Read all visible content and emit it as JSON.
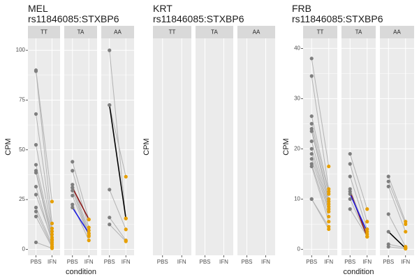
{
  "colors": {
    "panel_bg": "#ebebeb",
    "strip_bg": "#d9d9d9",
    "grid": "#ffffff",
    "pbs_point": "#7f7f7f",
    "ifn_point": "#e69f00",
    "pair_line": "#b3b3b3",
    "text": "#1a1a1a",
    "tick_text": "#4d4d4d"
  },
  "chart_data": [
    {
      "type": "scatter",
      "title_line1": "MEL",
      "title_line2": "rs11846085:STXBP6",
      "xlabel": "condition",
      "ylabel": "CPM",
      "ylim": [
        -3,
        106
      ],
      "yticks": [
        0,
        25,
        50,
        75,
        100
      ],
      "facets": [
        {
          "label": "TT",
          "categories": [
            "PBS",
            "IFN"
          ],
          "pairs": [
            {
              "pbs": 90,
              "ifn": 24
            },
            {
              "pbs": 89.5,
              "ifn": 13
            },
            {
              "pbs": 68,
              "ifn": 10.5
            },
            {
              "pbs": 52.5,
              "ifn": 9
            },
            {
              "pbs": 42.5,
              "ifn": 7.5
            },
            {
              "pbs": 39.5,
              "ifn": 6
            },
            {
              "pbs": 38.5,
              "ifn": 4.5
            },
            {
              "pbs": 31.5,
              "ifn": 3.5
            },
            {
              "pbs": 27.5,
              "ifn": 5
            },
            {
              "pbs": 21,
              "ifn": 2.5
            },
            {
              "pbs": 19,
              "ifn": 1.5
            },
            {
              "pbs": 16.5,
              "ifn": 1
            },
            {
              "pbs": 3.5,
              "ifn": 0.5
            }
          ],
          "highlight": []
        },
        {
          "label": "TA",
          "categories": [
            "PBS",
            "IFN"
          ],
          "pairs": [
            {
              "pbs": 44,
              "ifn": 15
            },
            {
              "pbs": 39.5,
              "ifn": 11
            },
            {
              "pbs": 32.5,
              "ifn": 9.5
            },
            {
              "pbs": 31,
              "ifn": 8
            },
            {
              "pbs": 29.5,
              "ifn": 7
            },
            {
              "pbs": 27,
              "ifn": 6.5
            },
            {
              "pbs": 22.5,
              "ifn": 4.5
            }
          ],
          "highlight": [
            {
              "pbs": 31,
              "ifn": 15,
              "color": "#8b1a1a"
            },
            {
              "pbs": 21,
              "ifn": 8,
              "color": "#1f1fe0"
            }
          ]
        },
        {
          "label": "AA",
          "categories": [
            "PBS",
            "IFN"
          ],
          "pairs": [
            {
              "pbs": 100,
              "ifn": 15.5
            },
            {
              "pbs": 72.5,
              "ifn": 36.5
            },
            {
              "pbs": 30,
              "ifn": 10
            },
            {
              "pbs": 16,
              "ifn": 4.5
            },
            {
              "pbs": 12.5,
              "ifn": 4
            }
          ],
          "highlight": [
            {
              "pbs": 72.5,
              "ifn": 15.5,
              "color": "#000000"
            }
          ]
        }
      ]
    },
    {
      "type": "scatter",
      "title_line1": "KRT",
      "title_line2": "rs11846085:STXBP6",
      "xlabel": "",
      "ylabel": "CPM",
      "ylim": [
        0,
        1
      ],
      "yticks": [],
      "facets": [
        {
          "label": "TT",
          "categories": [
            "PBS",
            "IFN"
          ],
          "pairs": [],
          "highlight": []
        },
        {
          "label": "TA",
          "categories": [
            "PBS",
            "IFN"
          ],
          "pairs": [],
          "highlight": []
        },
        {
          "label": "AA",
          "categories": [
            "PBS",
            "IFN"
          ],
          "pairs": [],
          "highlight": []
        }
      ]
    },
    {
      "type": "scatter",
      "title_line1": "FRB",
      "title_line2": "rs11846085:STXBP6",
      "xlabel": "condition",
      "ylabel": "CPM",
      "ylim": [
        -1.2,
        42
      ],
      "yticks": [
        0,
        10,
        20,
        30,
        40
      ],
      "facets": [
        {
          "label": "TT",
          "categories": [
            "PBS",
            "IFN"
          ],
          "pairs": [
            {
              "pbs": 38,
              "ifn": 16.5
            },
            {
              "pbs": 34.5,
              "ifn": 12
            },
            {
              "pbs": 26.5,
              "ifn": 11.5
            },
            {
              "pbs": 25,
              "ifn": 11
            },
            {
              "pbs": 24,
              "ifn": 10
            },
            {
              "pbs": 23.5,
              "ifn": 9.5
            },
            {
              "pbs": 21.5,
              "ifn": 9
            },
            {
              "pbs": 20,
              "ifn": 8.5
            },
            {
              "pbs": 19,
              "ifn": 8
            },
            {
              "pbs": 18,
              "ifn": 7.5
            },
            {
              "pbs": 17,
              "ifn": 6.5
            },
            {
              "pbs": 16.5,
              "ifn": 5.5
            },
            {
              "pbs": 10,
              "ifn": 4.5
            },
            {
              "pbs": 10,
              "ifn": 4
            }
          ],
          "highlight": []
        },
        {
          "label": "TA",
          "categories": [
            "PBS",
            "IFN"
          ],
          "pairs": [
            {
              "pbs": 19,
              "ifn": 8
            },
            {
              "pbs": 17,
              "ifn": 5.5
            },
            {
              "pbs": 14.5,
              "ifn": 4
            },
            {
              "pbs": 12,
              "ifn": 3
            },
            {
              "pbs": 10,
              "ifn": 2.5
            },
            {
              "pbs": 8,
              "ifn": 2.5
            }
          ],
          "highlight": [
            {
              "pbs": 11.5,
              "ifn": 2.5,
              "color": "#8b1a1a"
            },
            {
              "pbs": 11,
              "ifn": 3.5,
              "color": "#1f1fe0"
            }
          ]
        },
        {
          "label": "AA",
          "categories": [
            "PBS",
            "IFN"
          ],
          "pairs": [
            {
              "pbs": 14.5,
              "ifn": 5.5
            },
            {
              "pbs": 13.5,
              "ifn": 5
            },
            {
              "pbs": 12.5,
              "ifn": 3.5
            },
            {
              "pbs": 7,
              "ifn": 0.5
            },
            {
              "pbs": 1,
              "ifn": 0.3
            },
            {
              "pbs": 0.5,
              "ifn": 0.1
            }
          ],
          "highlight": [
            {
              "pbs": 3.5,
              "ifn": 0.2,
              "color": "#000000"
            }
          ]
        }
      ]
    }
  ]
}
